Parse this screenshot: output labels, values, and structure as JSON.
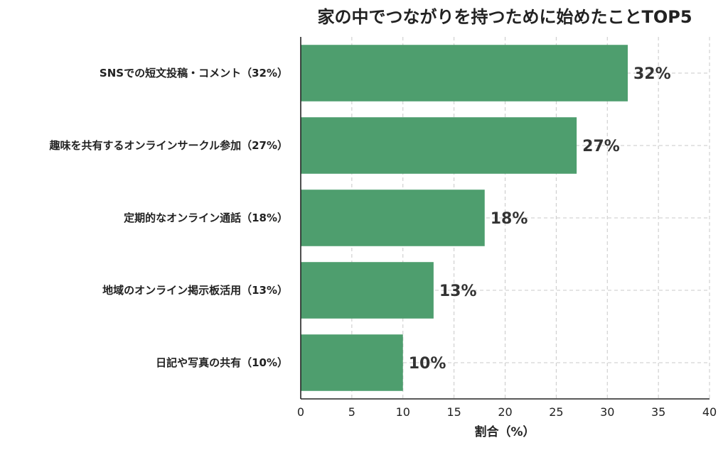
{
  "chart_data": {
    "type": "bar",
    "orientation": "horizontal",
    "title": "家の中でつながりを持つために始めたことTOP5",
    "xlabel": "割合（%）",
    "ylabel": "",
    "categories": [
      "SNSでの短文投稿・コメント（32%）",
      "趣味を共有するオンラインサークル参加（27%）",
      "定期的なオンライン通話（18%）",
      "地域のオンライン掲示板活用（13%）",
      "日記や写真の共有（10%）"
    ],
    "values": [
      32,
      27,
      18,
      13,
      10
    ],
    "data_labels": [
      "32%",
      "27%",
      "18%",
      "13%",
      "10%"
    ],
    "xlim": [
      0,
      40
    ],
    "xticks": [
      0,
      5,
      10,
      15,
      20,
      25,
      30,
      35,
      40
    ],
    "grid": true,
    "bar_color": "#4e9e6e"
  }
}
